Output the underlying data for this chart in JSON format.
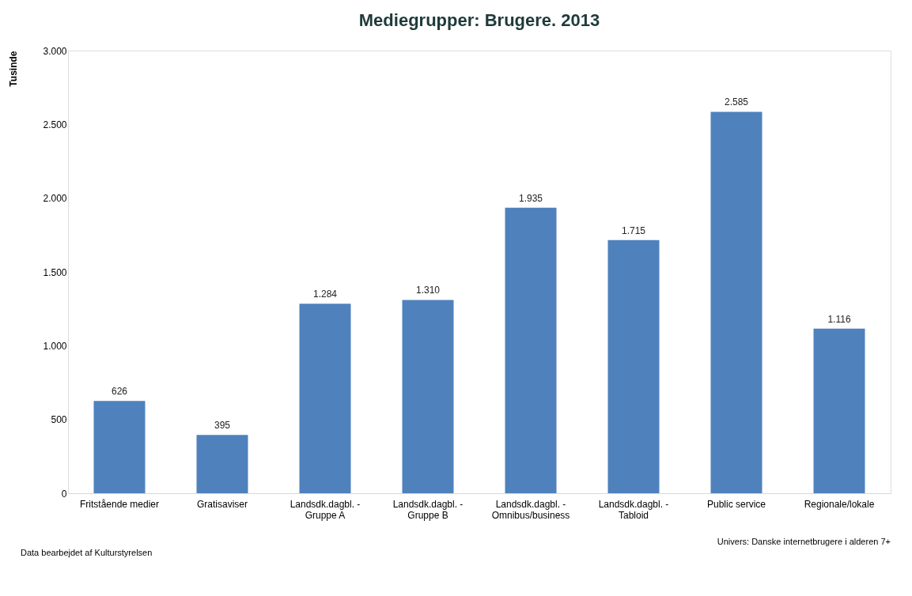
{
  "chart_data": {
    "type": "bar",
    "title": "Mediegrupper: Brugere. 2013",
    "ylabel": "Tusinde",
    "categories": [
      "Fritstående medier",
      "Gratisaviser",
      "Landsdk.dagbl. -\nGruppe A",
      "Landsdk.dagbl. -\nGruppe B",
      "Landsdk.dagbl. -\nOmnibus/business",
      "Landsdk.dagbl. -\nTabloid",
      "Public service",
      "Regionale/lokale"
    ],
    "values": [
      626,
      395,
      1284,
      1310,
      1935,
      1715,
      2585,
      1116
    ],
    "value_labels": [
      "626",
      "395",
      "1.284",
      "1.310",
      "1.935",
      "1.715",
      "2.585",
      "1.116"
    ],
    "color": "#4f81bd",
    "ylim": [
      0,
      3000
    ],
    "yticks": [
      {
        "value": 0,
        "label": "0"
      },
      {
        "value": 500,
        "label": "500"
      },
      {
        "value": 1000,
        "label": "1.000"
      },
      {
        "value": 1500,
        "label": "1.500"
      },
      {
        "value": 2000,
        "label": "2.000"
      },
      {
        "value": 2500,
        "label": "2.500"
      },
      {
        "value": 3000,
        "label": "3.000"
      }
    ],
    "grid": false,
    "annotations": [
      "Data bearbejdet af Kulturstyrelsen",
      "Univers: Danske internetbrugere i alderen 7+"
    ]
  }
}
